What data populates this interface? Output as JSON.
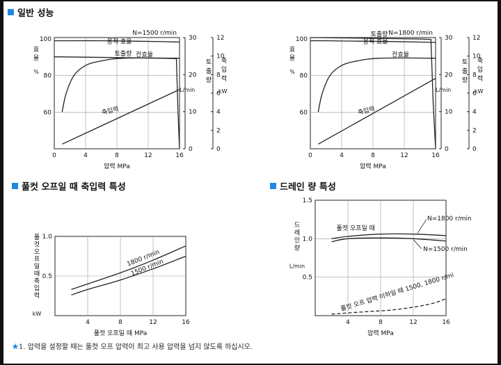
{
  "sections": {
    "s1": "일반 성능",
    "s2": "풀컷 오프일 때 축입력 특성",
    "s3": "드레인 량 특성"
  },
  "footnote": {
    "star": "★",
    "text": "1. 압력을 설정할 때는 풀컷 오프 압력이 최고 사용 압력을 넘지 않도록 하십시오."
  },
  "colors": {
    "accent": "#1e88e5",
    "line": "#222222",
    "grid": "#999999"
  },
  "chart_data": [
    {
      "type": "line",
      "id": "perf1500",
      "title": "N=1500 r/min",
      "xlabel": "압력 MPa",
      "xlim": [
        0,
        16
      ],
      "xticks": [
        0,
        4,
        8,
        12,
        16
      ],
      "left_axis": {
        "label": [
          "효",
          "율",
          "%"
        ],
        "ticks": [
          60,
          80,
          100
        ]
      },
      "flow_axis": {
        "label": [
          "토",
          "출",
          "량",
          "L/min"
        ],
        "ticks": [
          0,
          10,
          20,
          30
        ]
      },
      "power_axis": {
        "label": [
          "축",
          "입",
          "력",
          "kW"
        ],
        "ticks": [
          0,
          2,
          4,
          6,
          8,
          10,
          12
        ]
      },
      "series": [
        {
          "name": "용적 효율",
          "axis": "eff",
          "x": [
            0,
            2,
            6,
            10,
            14,
            16
          ],
          "y": [
            99,
            99,
            99,
            98.8,
            98.5,
            98.3
          ]
        },
        {
          "name": "전효율",
          "axis": "eff",
          "x": [
            1,
            1.5,
            2.5,
            4,
            6,
            9,
            16
          ],
          "y": [
            60,
            70,
            80,
            85.5,
            88,
            89.5,
            89.5
          ]
        },
        {
          "name": "토출량",
          "axis": "flow",
          "x": [
            0,
            8,
            14,
            15.6,
            15.8,
            16
          ],
          "y": [
            24.8,
            24.6,
            24.4,
            24.3,
            10,
            0
          ]
        },
        {
          "name": "축입력",
          "axis": "power",
          "x": [
            1,
            16
          ],
          "y": [
            0.5,
            6.4
          ]
        }
      ]
    },
    {
      "type": "line",
      "id": "perf1800",
      "title": "N=1800 r/min",
      "xlabel": "압력 MPa",
      "xlim": [
        0,
        16
      ],
      "xticks": [
        0,
        4,
        8,
        12,
        16
      ],
      "left_axis": {
        "label": [
          "효",
          "율",
          "%"
        ],
        "ticks": [
          60,
          80,
          100
        ]
      },
      "flow_axis": {
        "label": [
          "토",
          "출",
          "량",
          "L/min"
        ],
        "ticks": [
          0,
          10,
          20,
          30
        ]
      },
      "power_axis": {
        "label": [
          "축",
          "입",
          "력",
          "kW"
        ],
        "ticks": [
          0,
          2,
          4,
          6,
          8,
          10,
          12
        ]
      },
      "series": [
        {
          "name": "용적 효율",
          "axis": "eff",
          "x": [
            0,
            2,
            6,
            10,
            14,
            16
          ],
          "y": [
            99,
            99,
            98.8,
            98.6,
            98.3,
            98.1
          ]
        },
        {
          "name": "전효율",
          "axis": "eff",
          "x": [
            1,
            1.5,
            2.5,
            4,
            6,
            9,
            16
          ],
          "y": [
            60,
            70,
            80,
            85.5,
            88,
            89.5,
            89.5
          ]
        },
        {
          "name": "토출량",
          "axis": "flow",
          "x": [
            0,
            8,
            14,
            15.4,
            15.7,
            16
          ],
          "y": [
            30,
            29.8,
            29.6,
            29.5,
            12,
            0
          ]
        },
        {
          "name": "축입력",
          "axis": "power",
          "x": [
            1,
            16
          ],
          "y": [
            0.5,
            7.6
          ]
        }
      ]
    },
    {
      "type": "line",
      "id": "fullcut",
      "xlabel": "풀컷 오프일 때 MPa",
      "ylabel": [
        "풀",
        "컷",
        "오",
        "프",
        "일",
        "때",
        "축",
        "입",
        "력",
        "kW"
      ],
      "xlim": [
        0,
        16
      ],
      "ylim": [
        0,
        1.0
      ],
      "xticks": [
        4,
        8,
        12,
        16
      ],
      "yticks": [
        0.5,
        1.0
      ],
      "series": [
        {
          "name": "1800 r/min",
          "x": [
            2,
            4,
            8,
            12,
            16
          ],
          "y": [
            0.33,
            0.4,
            0.54,
            0.7,
            0.88
          ]
        },
        {
          "name": "1500 r/min",
          "x": [
            2,
            4,
            8,
            12,
            16
          ],
          "y": [
            0.26,
            0.33,
            0.45,
            0.59,
            0.75
          ]
        }
      ]
    },
    {
      "type": "line",
      "id": "drain",
      "xlabel": "압력 MPa",
      "ylabel": [
        "드",
        "레",
        "인",
        "량",
        "L/min"
      ],
      "xlim": [
        0,
        16
      ],
      "ylim": [
        0,
        1.5
      ],
      "xticks": [
        4,
        8,
        12,
        16
      ],
      "yticks": [
        0.5,
        1.0,
        1.5
      ],
      "series": [
        {
          "name": "N=1800 r/min",
          "x": [
            2,
            4,
            8,
            12,
            16
          ],
          "y": [
            1.0,
            1.03,
            1.06,
            1.06,
            1.04
          ]
        },
        {
          "name": "N=1500 r/min",
          "x": [
            2,
            4,
            8,
            12,
            16
          ],
          "y": [
            0.96,
            1.0,
            1.01,
            1.0,
            0.97
          ]
        },
        {
          "name": "풀컷 오프 압력 이하일 때 1500, 1800 r/mi",
          "dashed": true,
          "x": [
            2,
            6,
            10,
            14,
            16
          ],
          "y": [
            0.02,
            0.05,
            0.08,
            0.15,
            0.22
          ]
        }
      ]
    }
  ]
}
